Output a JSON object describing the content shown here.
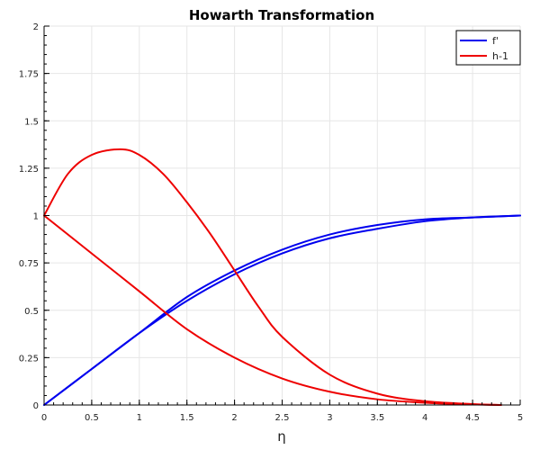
{
  "chart_data": {
    "type": "line",
    "title": "Howarth Transformation",
    "xlabel": "η",
    "ylabel": "",
    "xlim": [
      0,
      5
    ],
    "ylim": [
      0,
      2
    ],
    "xticks": [
      "0",
      "0.5",
      "1",
      "1.5",
      "2",
      "2.5",
      "3",
      "3.5",
      "4",
      "4.5",
      "5"
    ],
    "yticks": [
      "0",
      "0.25",
      "0.5",
      "0.75",
      "1",
      "1.25",
      "1.5",
      "1.75",
      "2"
    ],
    "grid": true,
    "legend": {
      "placement": "top-right",
      "entries": [
        {
          "label": "f'",
          "color": "#0000ee"
        },
        {
          "label": "h-1",
          "color": "#ee0000"
        }
      ]
    },
    "series": [
      {
        "color": "#0000ee",
        "x": [
          0,
          0.5,
          1,
          1.5,
          2,
          2.5,
          3,
          3.5,
          4,
          4.5,
          5
        ],
        "y": [
          0,
          0.19,
          0.38,
          0.55,
          0.69,
          0.8,
          0.88,
          0.93,
          0.97,
          0.99,
          1.0
        ]
      },
      {
        "color": "#0000ee",
        "x": [
          0,
          0.5,
          1,
          1.5,
          2,
          2.5,
          3,
          3.5,
          4,
          4.5,
          5
        ],
        "y": [
          0,
          0.19,
          0.38,
          0.57,
          0.71,
          0.82,
          0.9,
          0.95,
          0.98,
          0.99,
          1.0
        ]
      },
      {
        "color": "#ee0000",
        "x": [
          0,
          0.25,
          0.5,
          0.8,
          1.0,
          1.25,
          1.5,
          1.75,
          2.0,
          2.25,
          2.5,
          3.0,
          3.5,
          4.0,
          4.5,
          4.8
        ],
        "y": [
          1.0,
          1.22,
          1.32,
          1.35,
          1.32,
          1.22,
          1.07,
          0.9,
          0.71,
          0.52,
          0.36,
          0.16,
          0.06,
          0.02,
          0.005,
          0.0
        ]
      },
      {
        "color": "#ee0000",
        "x": [
          0,
          0.5,
          1.0,
          1.5,
          2.0,
          2.5,
          3.0,
          3.5,
          4.0,
          4.5,
          4.8
        ],
        "y": [
          1.0,
          0.8,
          0.6,
          0.4,
          0.25,
          0.14,
          0.07,
          0.03,
          0.012,
          0.003,
          0.0
        ]
      }
    ]
  }
}
